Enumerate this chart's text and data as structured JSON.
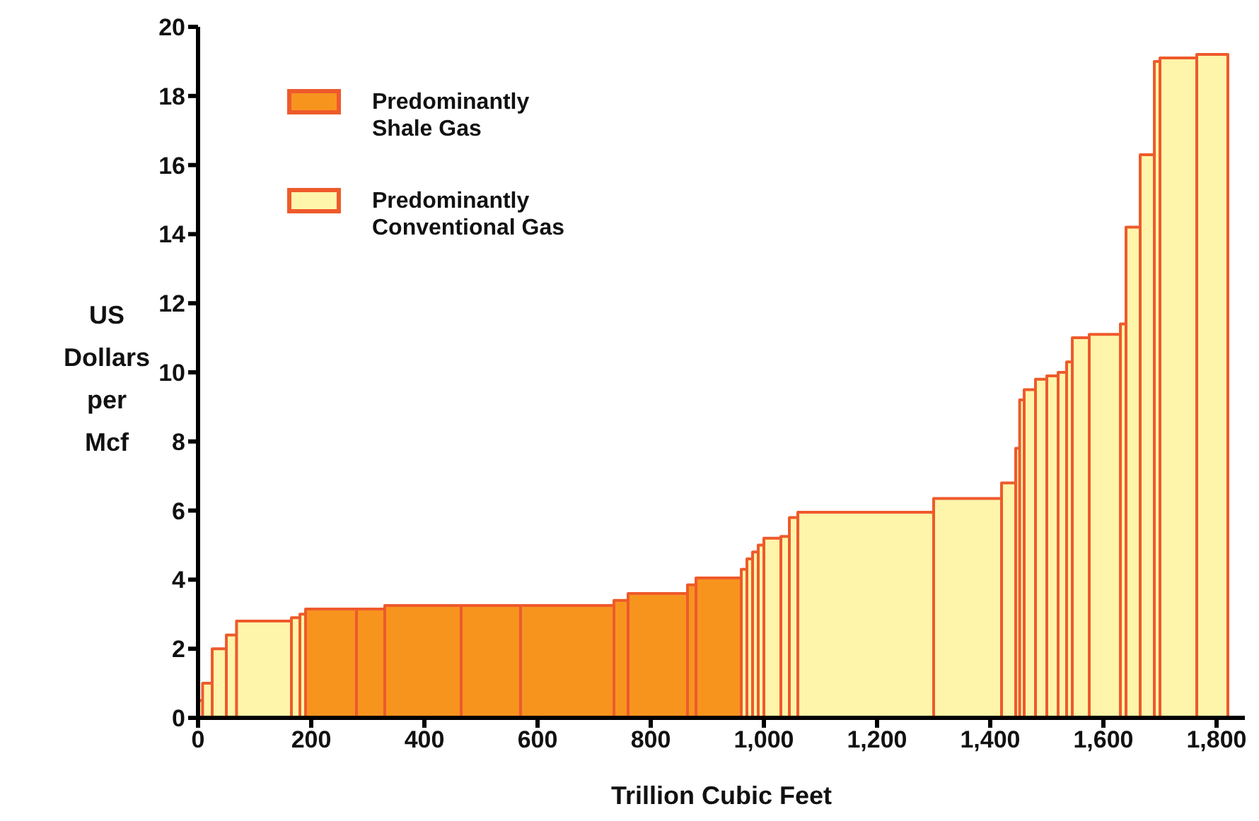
{
  "chart_data": {
    "type": "area",
    "xlabel": "Trillion Cubic Feet",
    "ylabel": "US Dollars per Mcf",
    "xlim": [
      0,
      1850
    ],
    "xticks": [
      0,
      {
        "value": 200,
        "label": "200"
      },
      {
        "value": 400,
        "label": "400"
      },
      {
        "value": 600,
        "label": "600"
      },
      {
        "value": 800,
        "label": "800"
      },
      {
        "value": 1000,
        "label": "1,000"
      },
      {
        "value": 1200,
        "label": "1,200"
      },
      {
        "value": 1400,
        "label": "1,400"
      },
      {
        "value": 1600,
        "label": "1,600"
      },
      {
        "value": 1800,
        "label": "1,800"
      }
    ],
    "ylim": [
      0,
      20
    ],
    "yticks": [
      0,
      2,
      4,
      6,
      8,
      10,
      12,
      14,
      16,
      18,
      20
    ],
    "grid": false,
    "legend": "top left",
    "series": [
      {
        "name": "Predominantly\nShale Gas",
        "color": "#f7941e",
        "x": [
          190,
          190,
          280,
          280,
          280,
          330,
          330,
          330,
          465,
          465,
          465,
          570,
          570,
          570,
          735,
          735,
          735,
          760,
          760,
          760,
          865,
          865,
          865,
          880,
          880,
          880,
          960,
          960
        ],
        "values": [
          0,
          3.15,
          3.15,
          0,
          3.15,
          3.15,
          0,
          3.25,
          3.25,
          0,
          3.25,
          3.25,
          0,
          3.25,
          3.25,
          0,
          3.4,
          3.4,
          0,
          3.6,
          3.6,
          0,
          3.85,
          3.85,
          0,
          4.05,
          4.05,
          0
        ]
      },
      {
        "name": "Predominantly\nConventional Gas",
        "color": "#fff5aa",
        "x": [
          0,
          0,
          8,
          8,
          8,
          25,
          25,
          25,
          50,
          50,
          50,
          68,
          68,
          68,
          165,
          165,
          165,
          180,
          180,
          180,
          190,
          190,
          960,
          960,
          970,
          970,
          970,
          980,
          980,
          980,
          990,
          990,
          990,
          1000,
          1000,
          1000,
          1030,
          1030,
          1030,
          1045,
          1045,
          1045,
          1060,
          1060,
          1060,
          1300,
          1300,
          1300,
          1420,
          1420,
          1420,
          1445,
          1445,
          1445,
          1452,
          1452,
          1452,
          1460,
          1460,
          1460,
          1480,
          1480,
          1480,
          1500,
          1500,
          1500,
          1520,
          1520,
          1520,
          1535,
          1535,
          1535,
          1545,
          1545,
          1545,
          1575,
          1575,
          1575,
          1630,
          1630,
          1630,
          1640,
          1640,
          1640,
          1665,
          1665,
          1665,
          1690,
          1690,
          1690,
          1700,
          1700,
          1700,
          1765,
          1765,
          1765,
          1820,
          1820
        ],
        "values": [
          0,
          0.5,
          0.5,
          0,
          1.0,
          1.0,
          0,
          2.0,
          2.0,
          0,
          2.4,
          2.4,
          0,
          2.8,
          2.8,
          0,
          2.9,
          2.9,
          0,
          3.0,
          3.0,
          0,
          0,
          4.3,
          4.3,
          0,
          4.6,
          4.6,
          0,
          4.8,
          4.8,
          0,
          5.0,
          5.0,
          0,
          5.2,
          5.2,
          0,
          5.25,
          5.25,
          0,
          5.8,
          5.8,
          0,
          5.95,
          5.95,
          0,
          6.35,
          6.35,
          0,
          6.8,
          6.8,
          0,
          7.8,
          7.8,
          0,
          9.2,
          9.2,
          0,
          9.5,
          9.5,
          0,
          9.8,
          9.8,
          0,
          9.9,
          9.9,
          0,
          10.0,
          10.0,
          0,
          10.3,
          10.3,
          0,
          11.0,
          11.0,
          0,
          11.1,
          11.1,
          0,
          11.4,
          11.4,
          0,
          14.2,
          14.2,
          0,
          16.3,
          16.3,
          0,
          19.0,
          19.0,
          0,
          19.1,
          19.1,
          0,
          19.2,
          19.2,
          0
        ]
      }
    ]
  }
}
